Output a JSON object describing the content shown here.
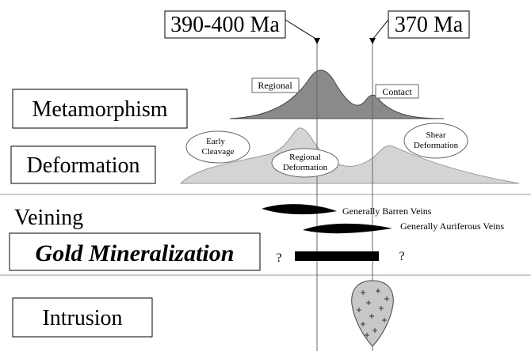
{
  "time_labels": [
    "390-400 Ma",
    "370 Ma"
  ],
  "rows": {
    "metamorphism": "Metamorphism",
    "deformation": "Deformation",
    "veining": "Veining",
    "gold": "Gold Mineralization",
    "intrusion": "Intrusion"
  },
  "metamorphism_labels": [
    "Regional",
    "Contact"
  ],
  "deformation_labels": [
    [
      "Early",
      "Cleavage"
    ],
    [
      "Regional",
      "Deformation"
    ],
    [
      "Shear",
      "Deformation"
    ]
  ],
  "vein_labels": [
    "Generally Barren Veins",
    "Generally Auriferous Veins"
  ],
  "gold_uncertain": [
    "?",
    "?"
  ]
}
